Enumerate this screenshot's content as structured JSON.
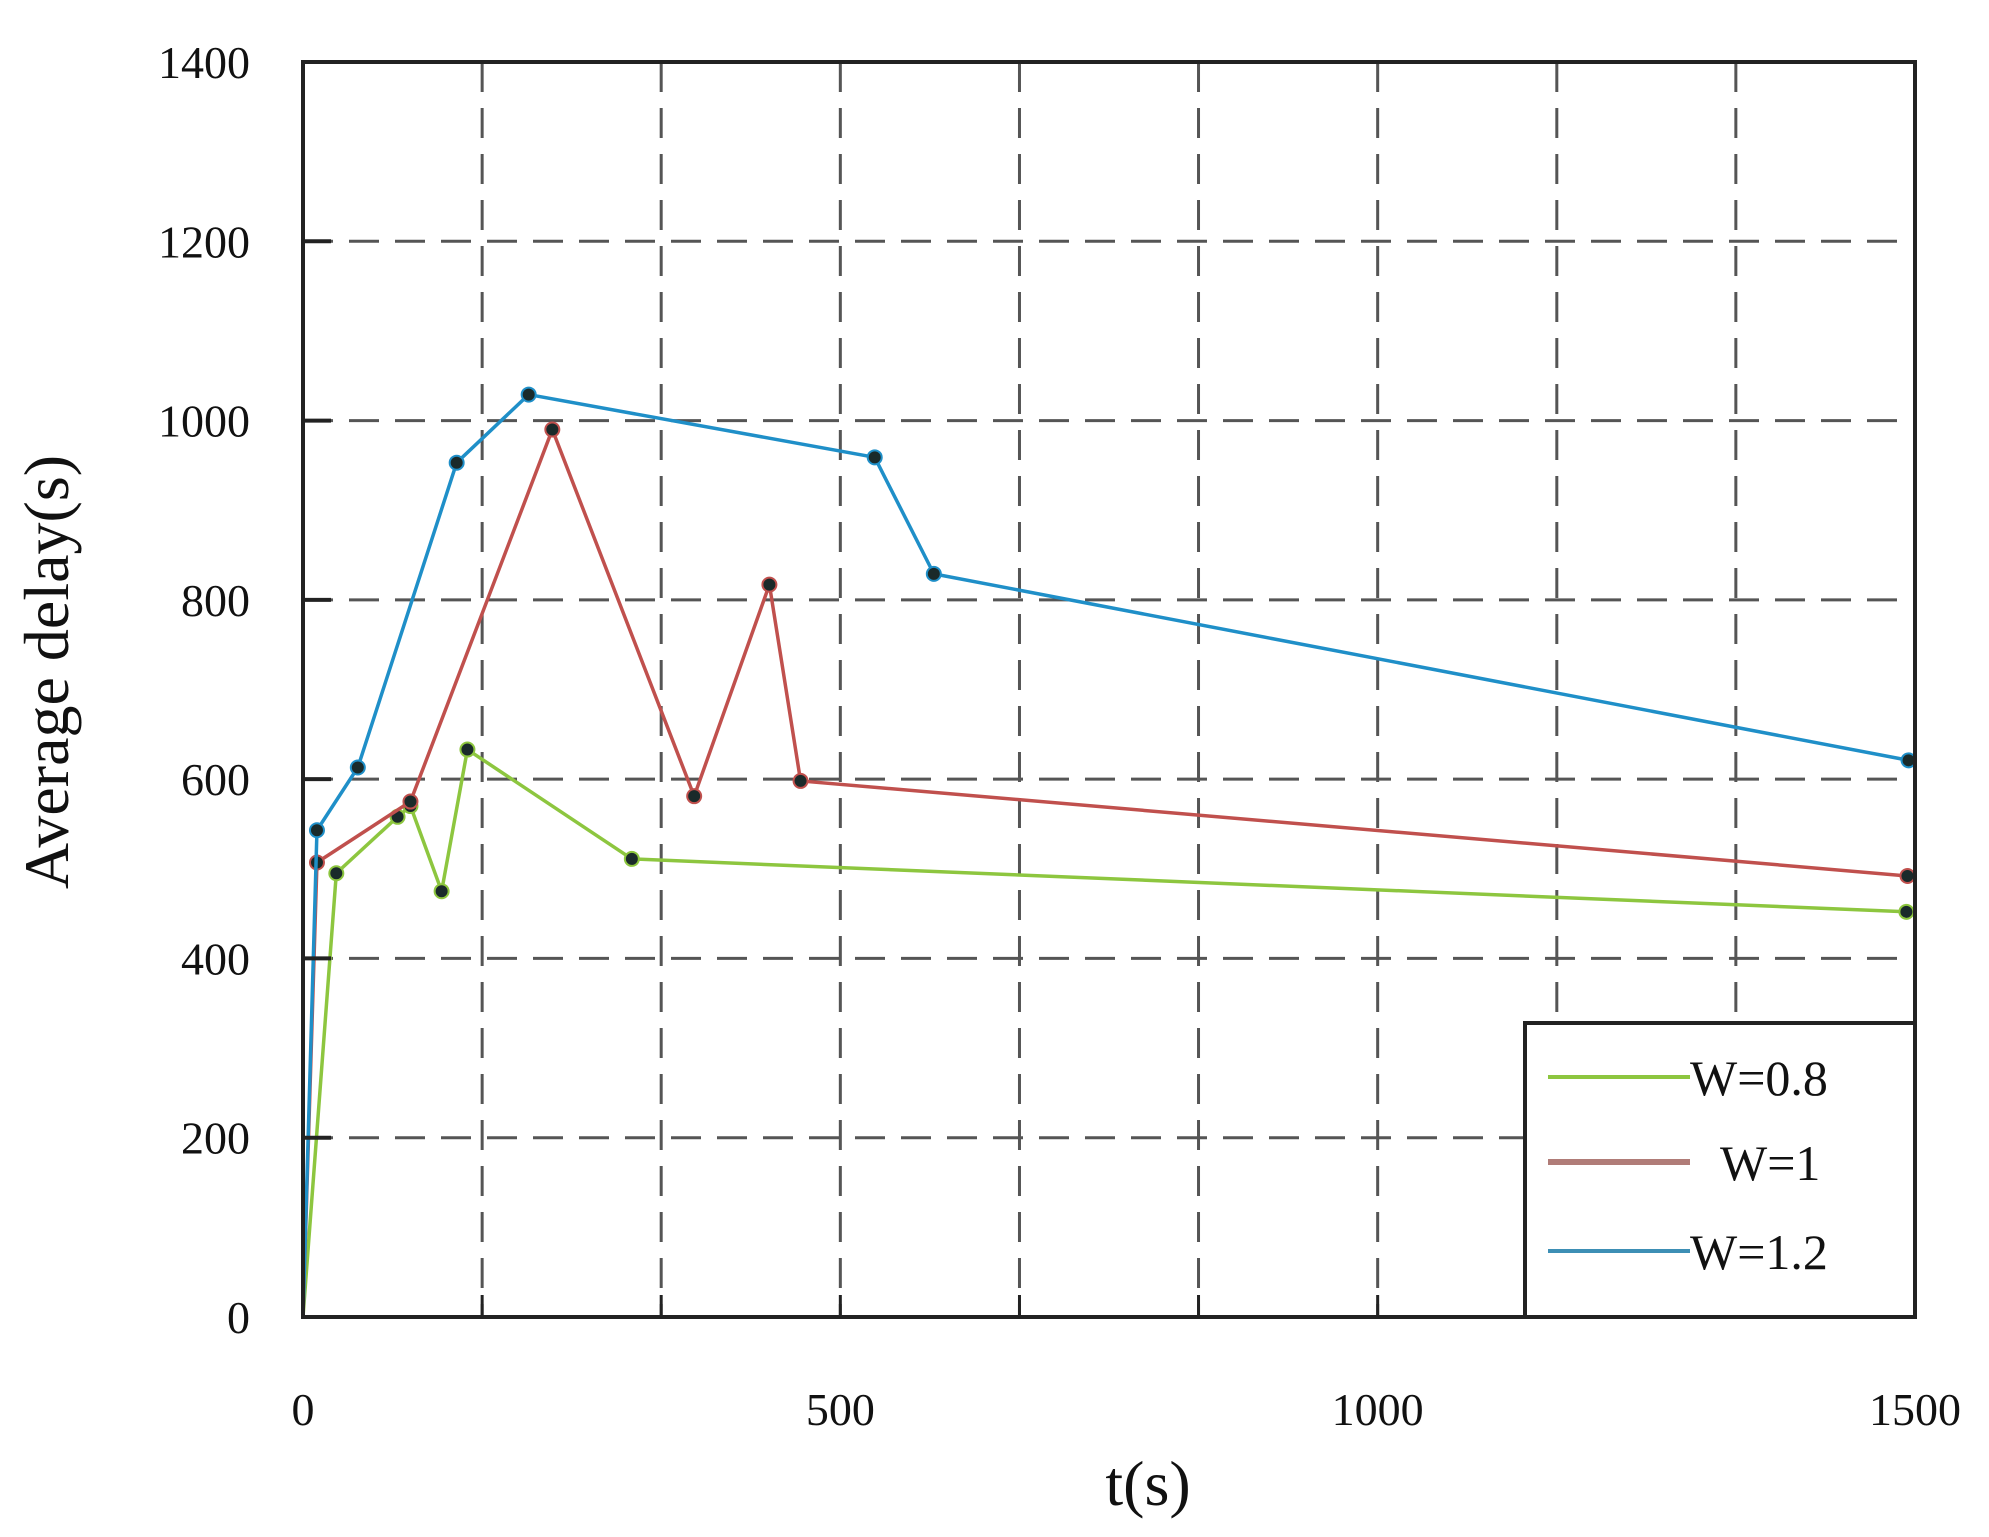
{
  "chart_data": {
    "type": "line",
    "title": "",
    "xlabel": "t(s)",
    "ylabel": "Average delay(s)",
    "xlim": [
      0,
      1500
    ],
    "ylim": [
      0,
      1400
    ],
    "x_ticks": [
      0,
      500,
      1000,
      1500
    ],
    "y_ticks": [
      0,
      200,
      400,
      600,
      800,
      1000,
      1200,
      1400
    ],
    "x_gridlines": [
      166.7,
      333.3,
      500,
      666.7,
      833.3,
      1000,
      1166.7,
      1333.3
    ],
    "grid": true,
    "grid_style": "dashed",
    "legend_position": "lower right",
    "series": [
      {
        "name": "W=0.8",
        "color": "#8dc63f",
        "x": [
          0,
          31,
          88,
          100,
          129,
          153,
          306,
          1492
        ],
        "y": [
          0,
          495,
          558,
          570,
          475,
          633,
          511,
          452
        ]
      },
      {
        "name": "W=1",
        "color": "#c0504d",
        "x": [
          0,
          13,
          100,
          232,
          364,
          434,
          463,
          1493
        ],
        "y": [
          0,
          507,
          575,
          990,
          581,
          817,
          598,
          492
        ]
      },
      {
        "name": "W=1.2",
        "color": "#1f8fc8",
        "x": [
          0,
          13,
          51,
          143,
          210,
          532,
          587,
          1494
        ],
        "y": [
          0,
          543,
          613,
          953,
          1029,
          959,
          829,
          621
        ]
      }
    ]
  },
  "legend": {
    "items": [
      {
        "label": "W=0.8",
        "color": "#8dc63f"
      },
      {
        "label": "W=1",
        "color": "#b07c78"
      },
      {
        "label": "W=1.2",
        "color": "#3d8fb5"
      }
    ]
  },
  "axes": {
    "x_title": "t(s)",
    "y_title": "Average delay(s)",
    "x_tick_labels": [
      "0",
      "500",
      "1000",
      "1500"
    ],
    "y_tick_labels": [
      "0",
      "200",
      "400",
      "600",
      "800",
      "1000",
      "1200",
      "1400"
    ]
  }
}
